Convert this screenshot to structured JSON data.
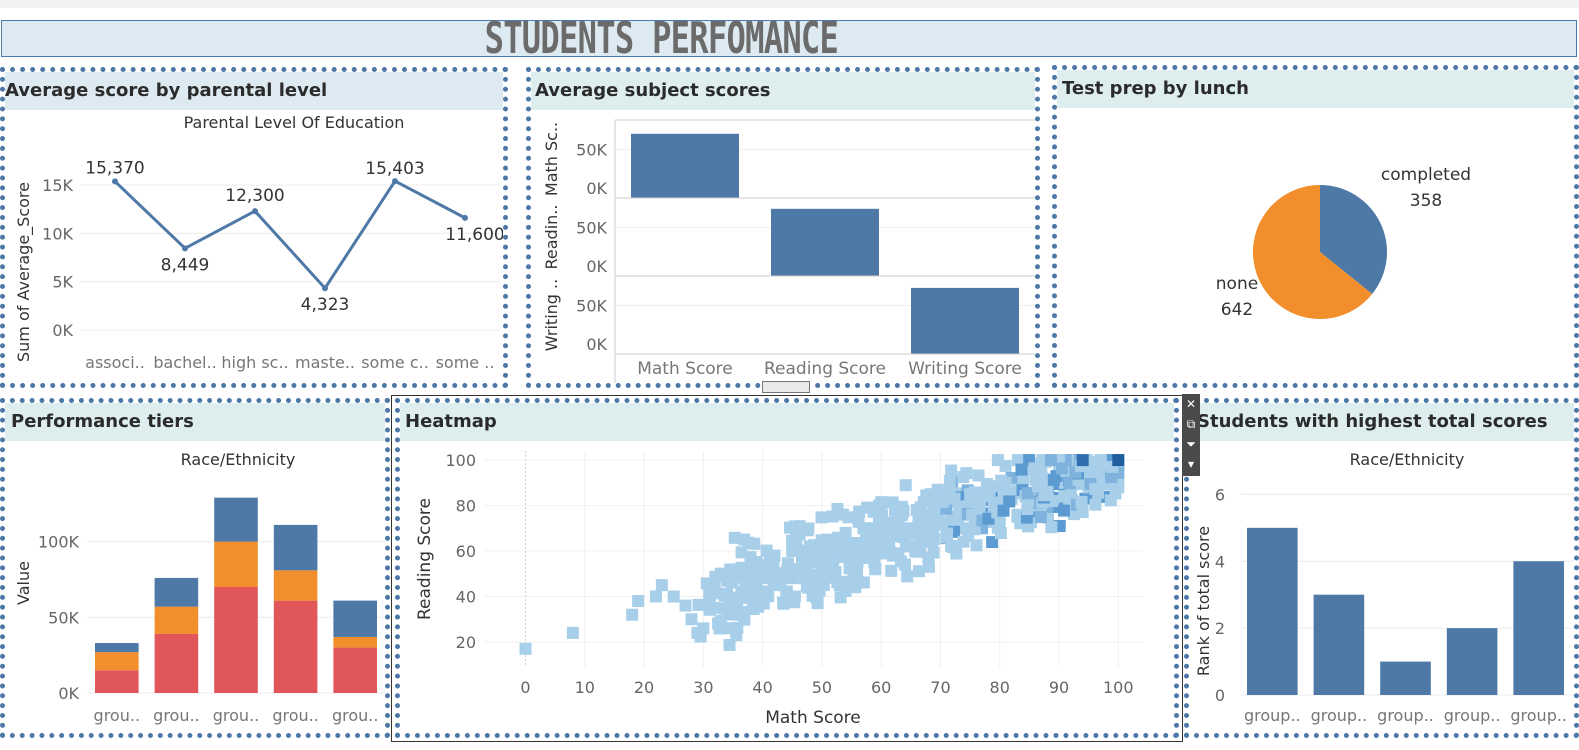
{
  "dashboard": {
    "title": "STUDENTS PERFOMANCE"
  },
  "panels": {
    "parental": {
      "title": "Average score by parental level"
    },
    "subjects": {
      "title": "Average subject scores"
    },
    "testprep": {
      "title": "Test prep by lunch"
    },
    "tiers": {
      "title": "Performance tiers"
    },
    "heatmap": {
      "title": "Heatmap"
    },
    "top": {
      "title": "Students with highest total scores"
    }
  },
  "colors": {
    "blue": "#4e79a7",
    "orange": "#f28e2b",
    "red": "#e15759",
    "accent_border": "#4d77a6",
    "header_blue": "#deeaf1",
    "header_green": "#deeeee",
    "heat_light": "#a7cfea",
    "heat_dark": "#1f5f9e"
  },
  "icons": [
    "close-icon",
    "popout-icon",
    "filter-icon",
    "chevron-down-icon"
  ],
  "chart_data": [
    {
      "id": "parental",
      "type": "line",
      "title": "Parental Level Of Education",
      "ylabel": "Sum of Average_Score",
      "xlabel": "",
      "categories": [
        "associ..",
        "bachel..",
        "high sc..",
        "maste..",
        "some c..",
        "some .."
      ],
      "values": [
        15370,
        8449,
        12300,
        4323,
        15403,
        11600
      ],
      "data_labels": [
        "15,370",
        "8,449",
        "12,300",
        "4,323",
        "15,403",
        "11,600"
      ],
      "yticks": [
        "0K",
        "5K",
        "10K",
        "15K"
      ],
      "ytick_values": [
        0,
        5000,
        10000,
        15000
      ],
      "ylim": [
        0,
        16000
      ],
      "grid": true
    },
    {
      "id": "subjects",
      "type": "bar",
      "categories": [
        "Math Score",
        "Reading Score",
        "Writing Score"
      ],
      "rows": [
        {
          "label": "Math Sc..",
          "values": [
            66089,
            0,
            0
          ]
        },
        {
          "label": "Readin..",
          "values": [
            0,
            69169,
            0
          ]
        },
        {
          "label": "Writing ..",
          "values": [
            0,
            0,
            68054
          ]
        }
      ],
      "yticks": [
        "0K",
        "50K"
      ],
      "ytick_values": [
        0,
        50000
      ],
      "ylim": [
        0,
        70000
      ]
    },
    {
      "id": "testprep",
      "type": "pie",
      "slices": [
        {
          "label": "completed",
          "value": 358,
          "value_label": "358",
          "color": "#4e79a7"
        },
        {
          "label": "none",
          "value": 642,
          "value_label": "642",
          "color": "#f28e2b"
        }
      ]
    },
    {
      "id": "tiers",
      "type": "bar",
      "stacked": true,
      "title": "Race/Ethnicity",
      "ylabel": "Value",
      "categories": [
        "grou..",
        "grou..",
        "grou..",
        "grou..",
        "grou.."
      ],
      "series": [
        {
          "color": "#e15759",
          "values": [
            15000,
            39000,
            70000,
            61000,
            30000
          ]
        },
        {
          "color": "#f28e2b",
          "values": [
            12000,
            18000,
            30000,
            20000,
            7000
          ]
        },
        {
          "color": "#4e79a7",
          "values": [
            6000,
            19000,
            29000,
            30000,
            24000
          ]
        }
      ],
      "yticks": [
        "0K",
        "50K",
        "100K"
      ],
      "ytick_values": [
        0,
        50000,
        100000
      ],
      "ylim": [
        0,
        140000
      ]
    },
    {
      "id": "heatmap",
      "type": "heatmap",
      "xlabel": "Math Score",
      "ylabel": "Reading Score",
      "xticks": [
        "0",
        "10",
        "20",
        "30",
        "40",
        "50",
        "60",
        "70",
        "80",
        "90",
        "100"
      ],
      "xtick_values": [
        0,
        10,
        20,
        30,
        40,
        50,
        60,
        70,
        80,
        90,
        100
      ],
      "yticks": [
        "20",
        "40",
        "60",
        "80",
        "100"
      ],
      "ytick_values": [
        20,
        40,
        60,
        80,
        100
      ],
      "xlim": [
        -7,
        104
      ],
      "ylim": [
        9,
        104
      ],
      "points": [
        [
          0,
          17
        ],
        [
          8,
          24
        ],
        [
          18,
          32
        ],
        [
          19,
          38
        ],
        [
          22,
          40
        ],
        [
          23,
          45
        ],
        [
          25,
          40
        ],
        [
          27,
          36
        ],
        [
          28,
          30
        ],
        [
          29,
          24
        ],
        [
          30,
          26
        ],
        [
          31,
          42
        ],
        [
          32,
          35
        ],
        [
          33,
          28
        ],
        [
          34,
          47
        ],
        [
          35,
          38
        ],
        [
          36,
          32
        ],
        [
          37,
          52
        ],
        [
          38,
          45
        ],
        [
          39,
          55
        ],
        [
          40,
          42
        ],
        [
          41,
          50
        ],
        [
          42,
          58
        ],
        [
          43,
          45
        ],
        [
          44,
          40
        ],
        [
          45,
          60
        ],
        [
          46,
          52
        ],
        [
          47,
          48
        ],
        [
          48,
          62
        ],
        [
          49,
          55
        ],
        [
          50,
          50
        ],
        [
          51,
          65
        ],
        [
          52,
          58
        ],
        [
          53,
          45
        ],
        [
          54,
          68
        ],
        [
          55,
          60
        ],
        [
          56,
          55
        ],
        [
          57,
          70
        ],
        [
          58,
          63
        ],
        [
          59,
          52
        ],
        [
          60,
          72
        ],
        [
          61,
          65
        ],
        [
          62,
          58
        ],
        [
          63,
          75
        ],
        [
          64,
          68
        ],
        [
          65,
          62
        ],
        [
          66,
          78
        ],
        [
          67,
          70
        ],
        [
          68,
          64
        ],
        [
          69,
          80
        ],
        [
          70,
          73
        ],
        [
          71,
          66
        ],
        [
          72,
          82
        ],
        [
          73,
          75
        ],
        [
          74,
          70
        ],
        [
          75,
          85
        ],
        [
          76,
          78
        ],
        [
          77,
          72
        ],
        [
          78,
          87
        ],
        [
          79,
          80
        ],
        [
          80,
          74
        ],
        [
          81,
          90
        ],
        [
          82,
          83
        ],
        [
          83,
          76
        ],
        [
          84,
          92
        ],
        [
          85,
          85
        ],
        [
          86,
          80
        ],
        [
          87,
          95
        ],
        [
          88,
          88
        ],
        [
          89,
          82
        ],
        [
          90,
          96
        ],
        [
          91,
          90
        ],
        [
          92,
          85
        ],
        [
          93,
          98
        ],
        [
          94,
          92
        ],
        [
          95,
          88
        ],
        [
          96,
          99
        ],
        [
          97,
          95
        ],
        [
          98,
          90
        ],
        [
          99,
          100
        ],
        [
          100,
          97
        ],
        [
          100,
          100
        ]
      ]
    },
    {
      "id": "top",
      "type": "bar",
      "title": "Race/Ethnicity",
      "ylabel": "Rank of total score",
      "categories": [
        "group..",
        "group..",
        "group..",
        "group..",
        "group.."
      ],
      "values": [
        5,
        3,
        1,
        2,
        4
      ],
      "yticks": [
        "0",
        "2",
        "4",
        "6"
      ],
      "ytick_values": [
        0,
        2,
        4,
        6
      ],
      "ylim": [
        0,
        6.4
      ]
    }
  ]
}
